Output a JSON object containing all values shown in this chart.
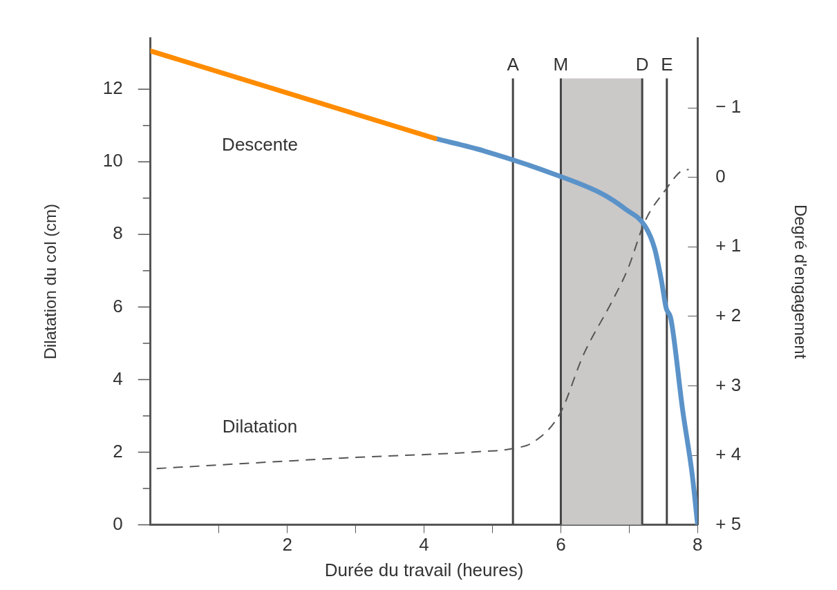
{
  "chart_data": {
    "type": "line",
    "xlabel": "Durée du travail (heures)",
    "ylabel": "Dilatation du col (cm)",
    "y2label": "Degré d'engagement",
    "xlim": [
      0,
      8
    ],
    "xticks": [
      {
        "value": 1,
        "label": null
      },
      2,
      {
        "value": 3,
        "label": null
      },
      4,
      {
        "value": 5,
        "label": null
      },
      6,
      {
        "value": 7,
        "label": null
      },
      8
    ],
    "ylim": [
      0,
      13.4
    ],
    "yticks": [
      0,
      {
        "value": 1,
        "label": null
      },
      2,
      {
        "value": 3,
        "label": null
      },
      4,
      {
        "value": 5,
        "label": null
      },
      6,
      {
        "value": 7,
        "label": null
      },
      8,
      {
        "value": 9,
        "label": null
      },
      10,
      {
        "value": 11,
        "label": null
      },
      12
    ],
    "y2lim": [
      5,
      -2
    ],
    "y2ticks": [
      {
        "value": -1,
        "label": "− 1"
      },
      0,
      {
        "value": 1,
        "label": "+ 1"
      },
      {
        "value": 2,
        "label": "+ 2"
      },
      {
        "value": 3,
        "label": "+ 3"
      },
      {
        "value": 4,
        "label": "+ 4"
      },
      {
        "value": 5,
        "label": "+ 5"
      }
    ],
    "series": [
      {
        "color": "#ff8c00",
        "axis": "y2",
        "line_style": "solid",
        "x": [
          0,
          4.16
        ],
        "values": [
          -1.82,
          -0.56
        ]
      },
      {
        "color": "#5b93c9",
        "axis": "y2",
        "line_style": "solid",
        "x": [
          4.16,
          4.88,
          5.92,
          6.61,
          6.95,
          7.23,
          7.37,
          7.47,
          7.54,
          7.61,
          7.78,
          7.92,
          8.0
        ],
        "values": [
          -0.56,
          -0.38,
          -0.04,
          0.24,
          0.46,
          0.7,
          1.02,
          1.48,
          1.88,
          2.04,
          3.34,
          4.27,
          5
        ]
      },
      {
        "color": "#555555",
        "line_style": "dashed",
        "x": [
          0.09,
          2.82,
          4.85,
          5.3,
          5.61,
          5.99,
          6.33,
          6.75,
          6.98,
          7.23,
          7.54,
          7.75,
          7.87
        ],
        "values": [
          1.55,
          1.84,
          2.02,
          2.1,
          2.29,
          3.07,
          4.68,
          6.16,
          7.05,
          8.36,
          9.25,
          9.73,
          9.79
        ]
      }
    ],
    "ref_lines": [
      {
        "axis": "x",
        "value": 5.3,
        "label": "A",
        "color": "#444444"
      },
      {
        "axis": "x",
        "value": 6.0,
        "label": "M",
        "color": "#444444"
      },
      {
        "axis": "x",
        "value": 7.19,
        "label": "D",
        "color": "#444444"
      },
      {
        "axis": "x",
        "value": 7.55,
        "label": "E",
        "color": "#444444"
      }
    ],
    "bands": [
      {
        "axis": "x",
        "from": 6.0,
        "to": 7.19,
        "color": "#cbc8c8"
      }
    ],
    "annotations": [
      "Descente",
      "Dilatation"
    ],
    "grid": false,
    "legend": false,
    "marker": "none"
  }
}
